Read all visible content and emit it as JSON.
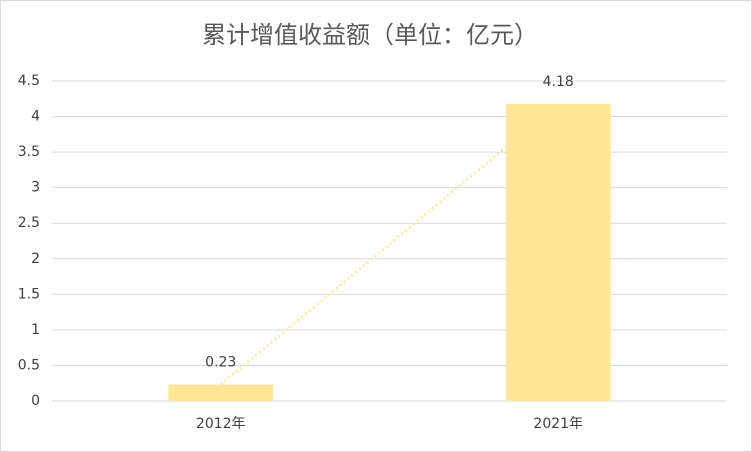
{
  "chart_data": {
    "type": "bar",
    "title": "累计增值收益额（单位：亿元）",
    "categories": [
      "2012年",
      "2021年"
    ],
    "values": [
      0.23,
      4.18
    ],
    "color": "#ffe699",
    "ylim": [
      0,
      4.5
    ],
    "yticks": [
      0,
      0.5,
      1,
      1.5,
      2,
      2.5,
      3,
      3.5,
      4,
      4.5
    ],
    "grid": true,
    "trendline": true
  }
}
